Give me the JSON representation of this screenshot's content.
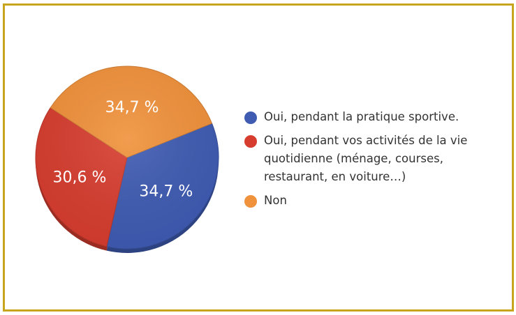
{
  "chart_data": {
    "type": "pie",
    "slices": [
      {
        "label": "Oui, pendant la pratique sportive.",
        "value": 34.7,
        "display": "34,7 %",
        "color": "#3f5bb2"
      },
      {
        "label": "Oui, pendant vos activités de la vie quotidienne (ménage, courses, restaurant, en voiture…)",
        "value": 30.6,
        "display": "30,6 %",
        "color": "#d63d2f"
      },
      {
        "label": "Non",
        "value": 34.7,
        "display": "34,7 %",
        "color": "#f0913b"
      }
    ],
    "legend_placement": "right"
  },
  "colors": {
    "frame": "#c9a51d"
  }
}
